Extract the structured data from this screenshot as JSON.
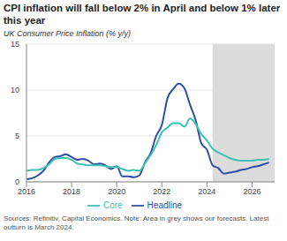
{
  "chart_data": {
    "type": "line",
    "title": "CPI inflation will fall below 2% in April and below 1% later this year",
    "subtitle": "UK Consumer Price Inflation (% y/y)",
    "source": "Sources: Refinitiv, Capital Economics. Note: Area in grey shows our forecasts. Latest outturn is March 2024.",
    "x": [
      2016,
      2016.25,
      2016.5,
      2016.75,
      2017,
      2017.25,
      2017.5,
      2017.75,
      2018,
      2018.25,
      2018.5,
      2018.75,
      2019,
      2019.25,
      2019.5,
      2019.75,
      2020,
      2020.25,
      2020.5,
      2020.75,
      2021,
      2021.25,
      2021.5,
      2021.75,
      2022,
      2022.25,
      2022.5,
      2022.75,
      2023,
      2023.25,
      2023.5,
      2023.75,
      2024,
      2024.25,
      2024.5,
      2024.75,
      2025,
      2025.25,
      2025.5,
      2025.75,
      2026,
      2026.25,
      2026.5,
      2026.75
    ],
    "series": [
      {
        "name": "Headline",
        "color": "#2d4fa3",
        "marker": "none",
        "line_style": "solid",
        "values": [
          0.3,
          0.4,
          0.7,
          1.2,
          2.1,
          2.7,
          2.8,
          3.0,
          2.7,
          2.4,
          2.5,
          2.3,
          1.9,
          2.0,
          1.8,
          1.4,
          1.7,
          0.6,
          0.6,
          0.5,
          0.7,
          2.1,
          3.1,
          5.0,
          6.2,
          9.1,
          10.1,
          10.7,
          10.2,
          8.4,
          6.7,
          4.2,
          3.5,
          1.8,
          1.5,
          0.9,
          1.0,
          1.1,
          1.3,
          1.4,
          1.6,
          1.7,
          1.9,
          2.1
        ]
      },
      {
        "name": "Core",
        "color": "#3cc2b4",
        "marker": "none",
        "line_style": "solid",
        "values": [
          1.2,
          1.3,
          1.3,
          1.5,
          1.9,
          2.5,
          2.6,
          2.6,
          2.4,
          2.0,
          1.9,
          1.8,
          1.8,
          1.8,
          1.7,
          1.6,
          1.6,
          1.4,
          1.2,
          1.3,
          1.2,
          2.0,
          2.9,
          4.0,
          5.4,
          5.9,
          6.4,
          6.4,
          6.0,
          6.9,
          6.3,
          5.2,
          4.5,
          3.6,
          3.2,
          2.9,
          2.6,
          2.4,
          2.3,
          2.3,
          2.3,
          2.4,
          2.4,
          2.5
        ]
      }
    ],
    "forecast_region": [
      2024.25,
      2027
    ],
    "xlim": [
      2016,
      2027
    ],
    "xticks": [
      2016,
      2018,
      2020,
      2022,
      2024,
      2026
    ],
    "ylim": [
      0,
      15
    ],
    "yticks": [
      0,
      5,
      10,
      15
    ],
    "grid": true,
    "legend": "bottom"
  }
}
